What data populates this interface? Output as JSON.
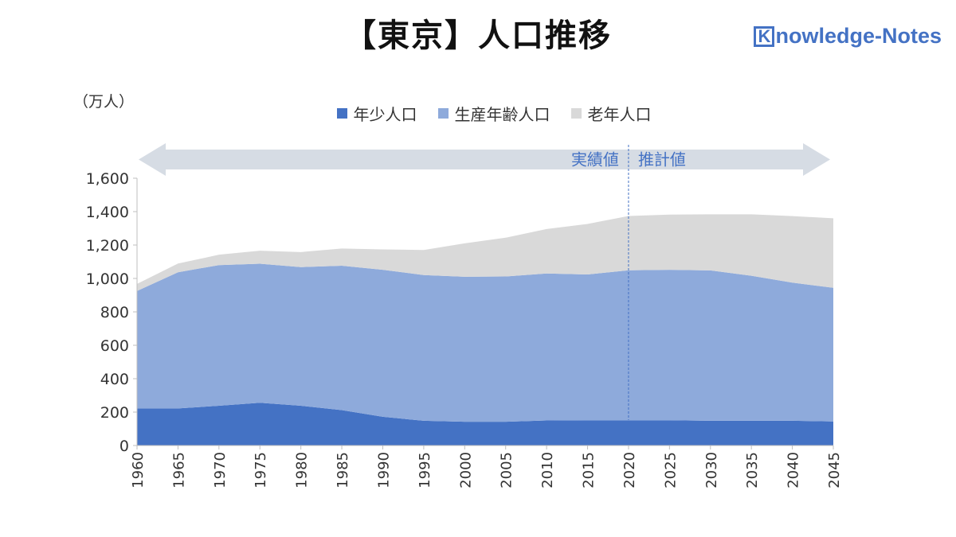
{
  "title": "【東京】人口推移",
  "brand": {
    "initial": "K",
    "rest": "nowledge-Notes"
  },
  "colors": {
    "youth": "#4472c4",
    "working": "#8eaadb",
    "elderly": "#d9d9d9",
    "arrow": "#d6dce4",
    "annotation": "#4472c4"
  },
  "chart_data": {
    "type": "area",
    "stacked": true,
    "unit_label": "（万人）",
    "x": [
      1960,
      1965,
      1970,
      1975,
      1980,
      1985,
      1990,
      1995,
      2000,
      2005,
      2010,
      2015,
      2020,
      2025,
      2030,
      2035,
      2040,
      2045
    ],
    "series": [
      {
        "name": "年少人口",
        "color": "#4472c4",
        "values": [
          222,
          222,
          238,
          256,
          238,
          212,
          172,
          148,
          142,
          142,
          150,
          151,
          151,
          151,
          148,
          148,
          148,
          144
        ]
      },
      {
        "name": "生産年齢人口",
        "color": "#8eaadb",
        "values": [
          703,
          815,
          842,
          832,
          830,
          864,
          880,
          872,
          868,
          870,
          880,
          873,
          898,
          901,
          900,
          868,
          827,
          800
        ]
      },
      {
        "name": "老年人口",
        "color": "#d9d9d9",
        "values": [
          42,
          52,
          62,
          78,
          90,
          103,
          122,
          150,
          200,
          232,
          266,
          302,
          325,
          330,
          336,
          368,
          398,
          416
        ]
      }
    ],
    "ylim": [
      0,
      1600
    ],
    "yticks": [
      0,
      200,
      400,
      600,
      800,
      1000,
      1200,
      1400,
      1600
    ],
    "ytick_labels": [
      "0",
      "200",
      "400",
      "600",
      "800",
      "1,000",
      "1,200",
      "1,400",
      "1,600"
    ],
    "grid": false,
    "legend_position": "top",
    "annotations": {
      "actual": "実績値",
      "projection": "推計値",
      "divider_x": 2020
    }
  }
}
